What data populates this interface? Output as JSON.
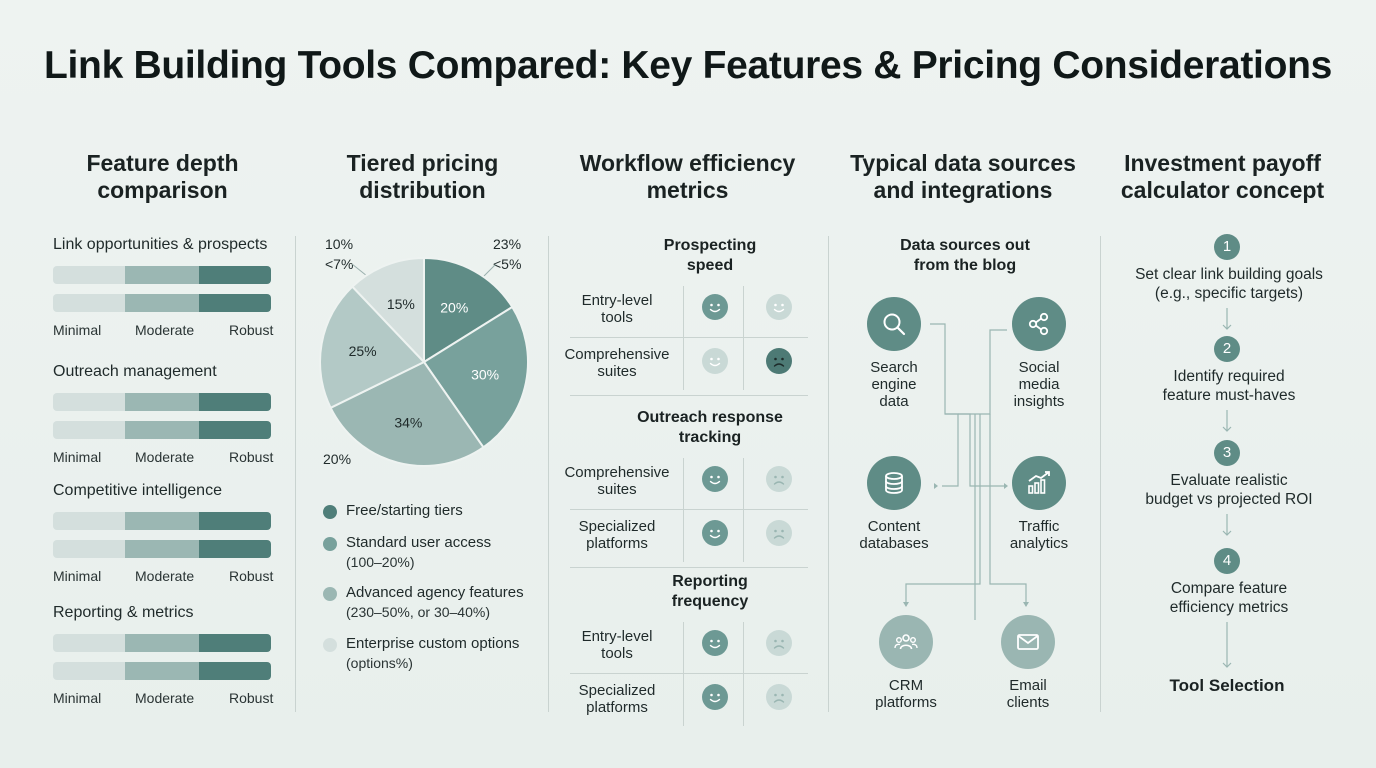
{
  "title": "Link Building Tools Compared: Key Features & Pricing Considerations",
  "columns": {
    "features": {
      "title_line1": "Feature depth",
      "title_line2": "comparison",
      "groups": [
        {
          "label": "Link opportunities & prospects"
        },
        {
          "label": "Outreach management"
        },
        {
          "label": "Competitive intelligence"
        },
        {
          "label": "Reporting & metrics"
        }
      ],
      "scale": {
        "low": "Minimal",
        "mid": "Moderate",
        "high": "Robust"
      }
    },
    "pricing": {
      "title_line1": "Tiered pricing",
      "title_line2": "distribution",
      "outer_labels": {
        "top_left_1": "10%",
        "top_left_2": "<7%",
        "top_right_1": "23%",
        "top_right_2": "<5%",
        "bottom_left": "20%"
      },
      "legend": [
        {
          "text": "Free/starting tiers",
          "sub": "",
          "color": "#4f7e79"
        },
        {
          "text": "Standard user access",
          "sub": "(100–20%)",
          "color": "#78a19c"
        },
        {
          "text": "Advanced agency features",
          "sub": "(230–50%, or 30–40%)",
          "color": "#9bb7b3"
        },
        {
          "text": "Enterprise custom options",
          "sub": "(options%)",
          "color": "#d4dfdd"
        }
      ]
    },
    "workflow": {
      "title_line1": "Workflow efficiency",
      "title_line2": "metrics",
      "sections": [
        {
          "title_line1": "Prospecting",
          "title_line2": "speed",
          "rows": [
            {
              "label_line1": "Entry-level",
              "label_line2": "tools"
            },
            {
              "label_line1": "Comprehensive",
              "label_line2": "suites"
            }
          ]
        },
        {
          "title_line1": "Outreach response",
          "title_line2": "tracking",
          "rows": [
            {
              "label_line1": "Comprehensive",
              "label_line2": "suites"
            },
            {
              "label_line1": "Specialized",
              "label_line2": "platforms"
            }
          ]
        },
        {
          "title_line1": "Reporting",
          "title_line2": "frequency",
          "rows": [
            {
              "label_line1": "Entry-level",
              "label_line2": "tools"
            },
            {
              "label_line1": "Specialized",
              "label_line2": "platforms"
            }
          ]
        }
      ]
    },
    "datasources": {
      "title_line1": "Typical data sources",
      "title_line2": "and integrations",
      "subtitle_line1": "Data sources out",
      "subtitle_line2": "from the blog",
      "nodes": [
        {
          "label_line1": "Search",
          "label_line2": "engine",
          "label_line3": "data",
          "icon": "search-icon"
        },
        {
          "label_line1": "Social",
          "label_line2": "media",
          "label_line3": "insights",
          "icon": "share-icon"
        },
        {
          "label_line1": "Content",
          "label_line2": "databases",
          "icon": "database-icon"
        },
        {
          "label_line1": "Traffic",
          "label_line2": "analytics",
          "icon": "chart-icon"
        },
        {
          "label_line1": "CRM",
          "label_line2": "platforms",
          "icon": "users-icon"
        },
        {
          "label_line1": "Email",
          "label_line2": "clients",
          "icon": "mail-icon"
        }
      ]
    },
    "payoff": {
      "title_line1": "Investment payoff",
      "title_line2": "calculator concept",
      "steps": [
        {
          "num": "1",
          "line1": "Set clear link building goals",
          "line2": "(e.g., specific targets)"
        },
        {
          "num": "2",
          "line1": "Identify required",
          "line2": "feature must-haves"
        },
        {
          "num": "3",
          "line1": "Evaluate realistic",
          "line2": "budget vs projected ROI"
        },
        {
          "num": "4",
          "line1": "Compare feature",
          "line2": "efficiency metrics"
        }
      ],
      "final": "Tool Selection"
    }
  },
  "chart_data": {
    "type": "pie",
    "slices": [
      {
        "label": "20%",
        "value": 20,
        "color": "#5f8c86"
      },
      {
        "label": "30%",
        "value": 30,
        "color": "#78a19c"
      },
      {
        "label": "34%",
        "value": 34,
        "color": "#9bb7b3"
      },
      {
        "label": "25%",
        "value": 25,
        "color": "#b3c9c6"
      },
      {
        "label": "15%",
        "value": 15,
        "color": "#d4dfdd"
      }
    ]
  }
}
